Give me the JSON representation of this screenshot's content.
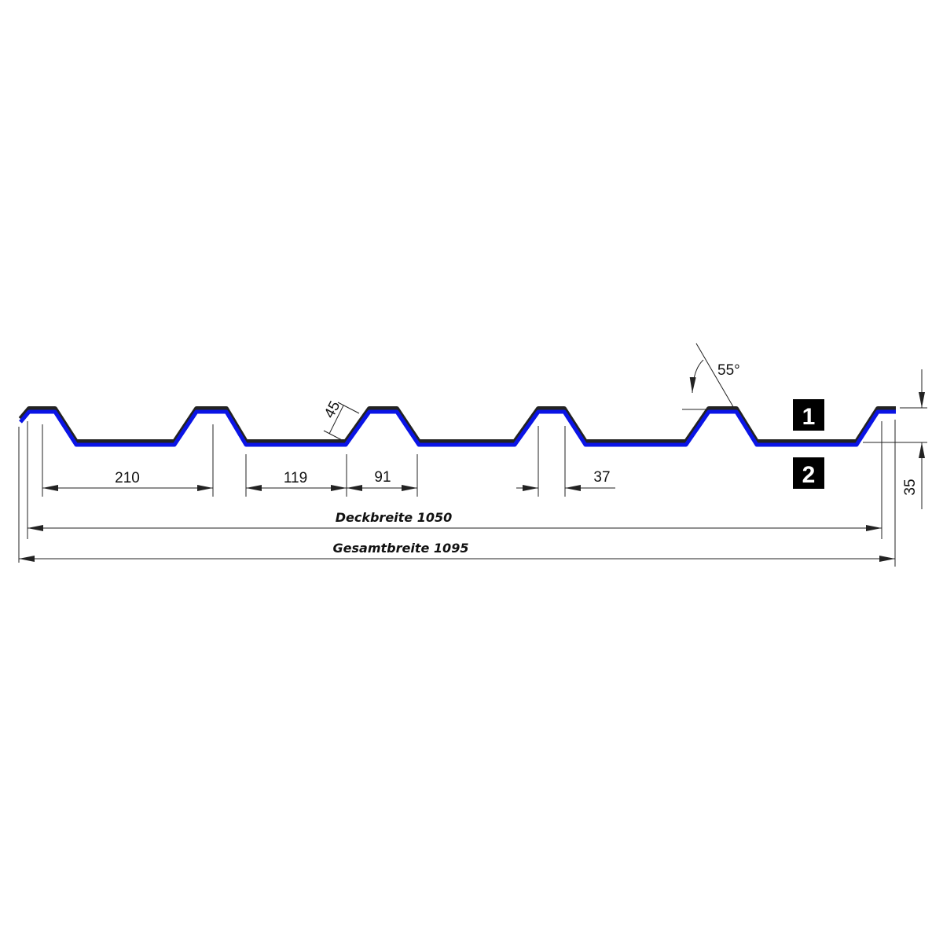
{
  "colors": {
    "profile_outer": "#222222",
    "profile_inner": "#0a14e6",
    "badge": "#000000"
  },
  "dimensions": {
    "d210": "210",
    "d119": "119",
    "d91": "91",
    "d37": "37",
    "d45": "45",
    "d35": "35",
    "angle": "55°"
  },
  "labels": {
    "deckbreite": "Deckbreite 1050",
    "gesamtbreite": "Gesamtbreite 1095"
  },
  "badges": [
    "1",
    "2"
  ]
}
